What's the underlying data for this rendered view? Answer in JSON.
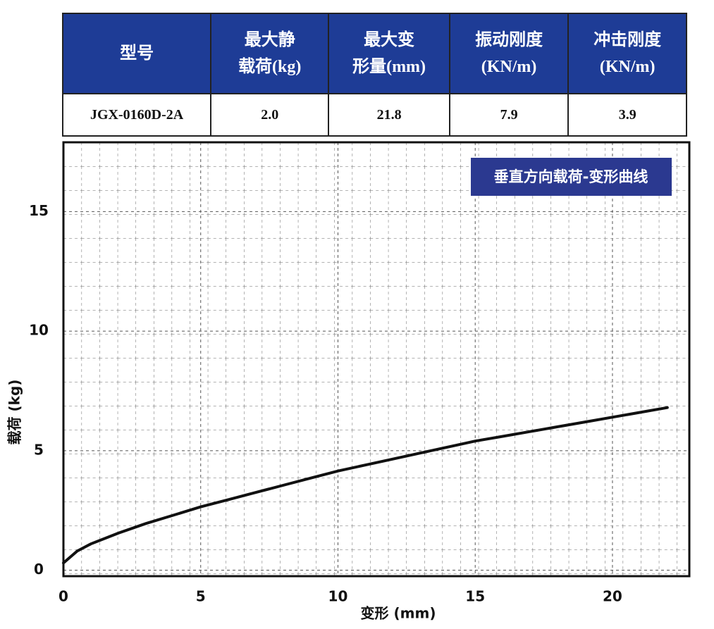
{
  "table": {
    "header": [
      [
        "型号"
      ],
      [
        "最大静",
        "载荷(kg)"
      ],
      [
        "最大变",
        "形量(mm)"
      ],
      [
        "振动刚度",
        "(KN/m)"
      ],
      [
        "冲击刚度",
        "(KN/m)"
      ]
    ],
    "rows": [
      [
        "JGX-0160D-2A",
        "2.0",
        "21.8",
        "7.9",
        "3.9"
      ]
    ]
  },
  "chart_data": {
    "type": "line",
    "title": "垂直方向载荷-变形曲线",
    "xlabel": "变形 (mm)",
    "ylabel": "载荷 (kg)",
    "x": [
      0,
      0.5,
      1,
      2,
      3,
      4,
      5,
      6,
      7,
      8,
      9,
      10,
      11,
      12,
      13,
      14,
      15,
      16,
      17,
      18,
      19,
      20,
      21,
      22
    ],
    "values": [
      0.3,
      0.8,
      1.1,
      1.55,
      1.95,
      2.3,
      2.65,
      2.95,
      3.25,
      3.55,
      3.85,
      4.15,
      4.4,
      4.65,
      4.9,
      5.15,
      5.4,
      5.6,
      5.8,
      6.0,
      6.2,
      6.4,
      6.6,
      6.8
    ],
    "color": "#111111",
    "xlim": [
      0,
      22.8
    ],
    "ylim": [
      -0.25,
      17.9
    ],
    "xticks": [
      0,
      5,
      10,
      15,
      20
    ],
    "yticks": [
      0,
      5,
      10,
      15
    ],
    "grid": true
  }
}
